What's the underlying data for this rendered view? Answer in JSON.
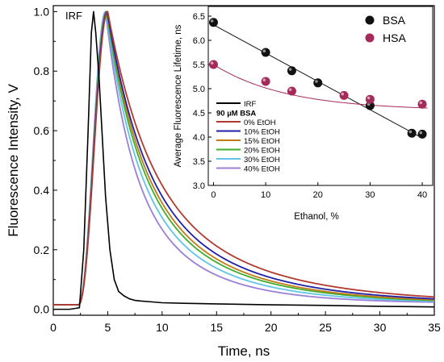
{
  "chart_data": [
    {
      "type": "line",
      "xlabel": "Time, ns",
      "ylabel": "Fluorescence Intensity, V",
      "xlim": [
        0,
        35
      ],
      "ylim": [
        -0.02,
        1.02
      ],
      "xticks": [
        "0",
        "5",
        "10",
        "15",
        "20",
        "25",
        "30",
        "35"
      ],
      "yticks": [
        "0.0",
        "0.2",
        "0.4",
        "0.6",
        "0.8",
        "1.0"
      ],
      "grid": false,
      "annotations": [
        "IRF"
      ],
      "legend": {
        "placement": "inside inset, bottom-left",
        "entries": [
          {
            "label": "IRF",
            "color": "#000000"
          },
          {
            "label": "90 µM BSA",
            "heading": true
          },
          {
            "label": "0% EtOH",
            "color": "#b03a2e"
          },
          {
            "label": "10% EtOH",
            "color": "#1f1fa8"
          },
          {
            "label": "15% EtOH",
            "color": "#c27a1a"
          },
          {
            "label": "20% EtOH",
            "color": "#3fae2a"
          },
          {
            "label": "30% EtOH",
            "color": "#5fc4e6"
          },
          {
            "label": "40% EtOH",
            "color": "#9b7fd6"
          }
        ]
      },
      "irf": {
        "name": "IRF",
        "color": "#000000",
        "x": [
          0,
          1.5,
          2.4,
          2.8,
          3.2,
          3.5,
          3.7,
          3.9,
          4.2,
          4.5,
          4.8,
          5.2,
          5.6,
          6.0,
          6.5,
          7.0,
          7.5,
          8,
          9,
          10,
          12,
          15,
          20,
          25,
          30,
          35
        ],
        "y": [
          0.0,
          0.0,
          0.005,
          0.2,
          0.6,
          0.93,
          1.0,
          0.93,
          0.78,
          0.58,
          0.38,
          0.2,
          0.1,
          0.06,
          0.045,
          0.035,
          0.03,
          0.028,
          0.025,
          0.022,
          0.02,
          0.018,
          0.015,
          0.013,
          0.01,
          0.008
        ]
      },
      "decay_series": [
        {
          "name": "0% EtOH",
          "color": "#b03a2e",
          "baseline": 0.015,
          "rise_start": 2.3,
          "peak_x": 5.0,
          "lifetime_ns": 6.4
        },
        {
          "name": "10% EtOH",
          "color": "#1f1fa8",
          "baseline": 0.015,
          "rise_start": 2.3,
          "peak_x": 4.95,
          "lifetime_ns": 5.75
        },
        {
          "name": "15% EtOH",
          "color": "#c27a1a",
          "baseline": 0.015,
          "rise_start": 2.3,
          "peak_x": 4.95,
          "lifetime_ns": 5.35
        },
        {
          "name": "20% EtOH",
          "color": "#3fae2a",
          "baseline": 0.015,
          "rise_start": 2.3,
          "peak_x": 4.9,
          "lifetime_ns": 5.1
        },
        {
          "name": "30% EtOH",
          "color": "#5fc4e6",
          "baseline": 0.015,
          "rise_start": 2.3,
          "peak_x": 4.85,
          "lifetime_ns": 4.65
        },
        {
          "name": "40% EtOH",
          "color": "#9b7fd6",
          "baseline": 0.015,
          "rise_start": 2.3,
          "peak_x": 4.8,
          "lifetime_ns": 4.1
        }
      ]
    },
    {
      "type": "scatter",
      "xlabel": "Ethanol, %",
      "ylabel": "Average Fluorescence Lifetime, ns",
      "xlim": [
        -1,
        42
      ],
      "ylim": [
        3.0,
        6.7
      ],
      "xticks": [
        "0",
        "10",
        "20",
        "30",
        "40"
      ],
      "yticks": [
        "3.0",
        "3.5",
        "4.0",
        "4.5",
        "5.0",
        "5.5",
        "6.0",
        "6.5"
      ],
      "legend_placement": "top-right",
      "series": [
        {
          "name": "BSA",
          "color": "#111111",
          "x": [
            0,
            10,
            15,
            20,
            30,
            38,
            40
          ],
          "y": [
            6.37,
            5.75,
            5.37,
            5.12,
            4.65,
            4.08,
            4.06
          ],
          "fit": {
            "x": [
              0,
              40
            ],
            "y": [
              6.32,
              3.98
            ]
          }
        },
        {
          "name": "HSA",
          "color": "#a32a5a",
          "x": [
            0,
            10,
            15,
            25,
            30,
            40
          ],
          "y": [
            5.5,
            5.15,
            4.95,
            4.86,
            4.78,
            4.68
          ],
          "fit_curve": true
        }
      ]
    }
  ]
}
